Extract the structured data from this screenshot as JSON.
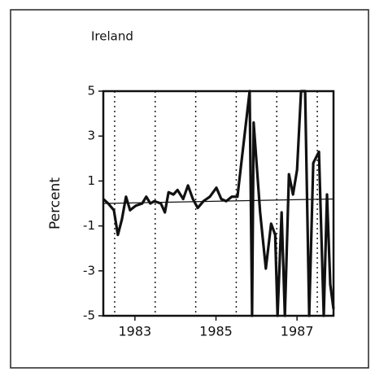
{
  "chart_data": {
    "type": "line",
    "title": "Ireland",
    "y_label": "Percent",
    "x": [
      1982.22,
      1982.34,
      1982.48,
      1982.58,
      1982.68,
      1982.78,
      1982.88,
      1983.02,
      1983.18,
      1983.28,
      1983.38,
      1983.48,
      1983.64,
      1983.74,
      1983.83,
      1983.95,
      1984.05,
      1984.19,
      1984.31,
      1984.43,
      1984.55,
      1984.69,
      1984.85,
      1985.01,
      1985.13,
      1985.25,
      1985.39,
      1985.53,
      1985.83,
      1985.89,
      1985.93,
      1986.09,
      1986.23,
      1986.36,
      1986.46,
      1986.52,
      1986.62,
      1986.7,
      1986.8,
      1986.9,
      1987.0,
      1987.1,
      1987.2,
      1987.3,
      1987.4,
      1987.54,
      1987.66,
      1987.74,
      1987.82,
      1987.9
    ],
    "values": [
      0.2,
      0,
      -0.3,
      -1.4,
      -0.7,
      0.3,
      -0.3,
      -0.1,
      0,
      0.3,
      0,
      0.1,
      0,
      -0.4,
      0.5,
      0.4,
      0.6,
      0.2,
      0.8,
      0.2,
      -0.2,
      0.1,
      0.3,
      0.7,
      0.2,
      0.1,
      0.3,
      0.3,
      5,
      -5,
      3.6,
      -0.4,
      -2.9,
      -0.9,
      -1.4,
      -5,
      -0.4,
      -5,
      1.3,
      0.4,
      1.5,
      5,
      5,
      -5,
      1.8,
      2.3,
      -5,
      0.4,
      -3.6,
      -4.7
    ],
    "color": "#111111",
    "trend": {
      "x": [
        1982.22,
        1987.9
      ],
      "values": [
        0.0,
        0.2
      ]
    },
    "xlim": [
      1982.22,
      1987.9
    ],
    "ylim": [
      -5,
      5
    ],
    "xticks": [
      1983,
      1985,
      1987
    ],
    "yticks": [
      5,
      3,
      1,
      -1,
      -3,
      -5
    ],
    "dotted_lines": [
      1982.5,
      1983.5,
      1984.5,
      1985.5,
      1986.5,
      1987.5
    ]
  }
}
